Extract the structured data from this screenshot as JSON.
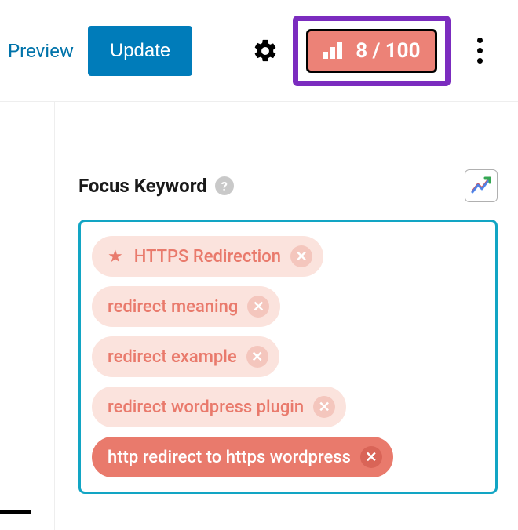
{
  "toolbar": {
    "preview_label": "Preview",
    "update_label": "Update",
    "score_value": "8 / 100",
    "score_bg": "#ec8277",
    "score_border": "#7b2cbf"
  },
  "panel": {
    "title": "Focus Keyword",
    "help_glyph": "?",
    "box_border_color": "#12a5c4"
  },
  "keywords": [
    {
      "label": "HTTPS Redirection",
      "primary": true,
      "variant": "light"
    },
    {
      "label": "redirect meaning",
      "primary": false,
      "variant": "light"
    },
    {
      "label": "redirect example",
      "primary": false,
      "variant": "light"
    },
    {
      "label": "redirect wordpress plugin",
      "primary": false,
      "variant": "light"
    },
    {
      "label": "http redirect to https wordpress",
      "primary": false,
      "variant": "dark"
    }
  ]
}
